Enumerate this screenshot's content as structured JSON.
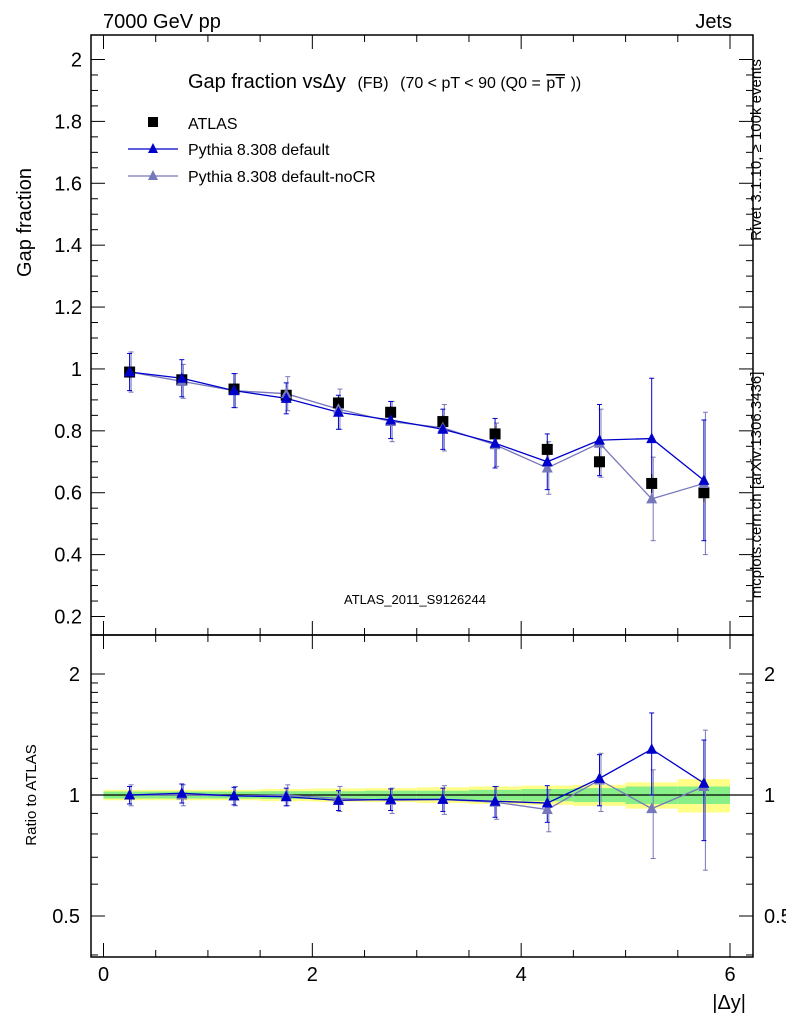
{
  "header": {
    "left": "7000 GeV pp",
    "right": "Jets"
  },
  "side_labels": {
    "rivet": "Rivet 3.1.10, ≥ 100k events",
    "mcplots": "mcplots.cern.ch [arXiv:1306.3436]"
  },
  "watermark": "ATLAS_2011_S9126244",
  "colors": {
    "atlas": "#000000",
    "default": "#0000cc",
    "nocr": "#7777bb",
    "band_yellow": "#ffff88",
    "band_green": "#88ee88",
    "ref_line": "#000000"
  },
  "chart_data": [
    {
      "type": "scatter",
      "title_parts": {
        "main": "Gap fraction vsΔy",
        "tag": "(FB)",
        "cond": "(70 < pT <  90 (Q0 =",
        "bar": "pT",
        "close": "))"
      },
      "ylabel": "Gap fraction",
      "xlim": [
        0,
        6.2
      ],
      "ylim": [
        0.15,
        2.08
      ],
      "yticks": [
        0.2,
        0.4,
        0.6,
        0.8,
        1,
        1.2,
        1.4,
        1.6,
        1.8,
        2
      ],
      "ytick_labels": [
        "0.2",
        "0.4",
        "0.6",
        "0.8",
        "1",
        "1.2",
        "1.4",
        "1.6",
        "1.8",
        "2"
      ],
      "legend_position": "top-left",
      "x": [
        0.25,
        0.75,
        1.25,
        1.75,
        2.25,
        2.75,
        3.25,
        3.75,
        4.25,
        4.75,
        5.25,
        5.75
      ],
      "series": [
        {
          "name": "ATLAS",
          "style": "square",
          "values": [
            0.99,
            0.965,
            0.935,
            0.915,
            0.89,
            0.86,
            0.83,
            0.79,
            0.74,
            0.7,
            0.63,
            0.6
          ],
          "err": [
            0.02,
            0.02,
            0.02,
            0.02,
            0.02,
            0.02,
            0.02,
            0.025,
            0.025,
            0.03,
            0.03,
            0.03
          ]
        },
        {
          "name": "Pythia 8.308 default",
          "style": "triangle-line",
          "values": [
            0.99,
            0.97,
            0.93,
            0.905,
            0.86,
            0.835,
            0.805,
            0.76,
            0.7,
            0.77,
            0.775,
            0.64
          ],
          "err": [
            0.06,
            0.06,
            0.055,
            0.05,
            0.055,
            0.06,
            0.065,
            0.08,
            0.09,
            0.115,
            0.195,
            0.195
          ]
        },
        {
          "name": "Pythia 8.308 default-noCR",
          "style": "triangle-line",
          "values": [
            0.99,
            0.96,
            0.93,
            0.92,
            0.87,
            0.83,
            0.81,
            0.755,
            0.68,
            0.76,
            0.58,
            0.63
          ],
          "err": [
            0.065,
            0.055,
            0.055,
            0.055,
            0.065,
            0.065,
            0.075,
            0.07,
            0.085,
            0.11,
            0.135,
            0.23
          ]
        }
      ]
    },
    {
      "type": "scatter",
      "ylabel": "Ratio to ATLAS",
      "xlabel": "|Δy|",
      "scale": "log",
      "xlim": [
        -0.1,
        6.2
      ],
      "ylim": [
        0.38,
        2.4
      ],
      "xticks": [
        0,
        2,
        4,
        6
      ],
      "xtick_labels": [
        "0",
        "2",
        "4",
        "6"
      ],
      "yticks": [
        0.5,
        1,
        2
      ],
      "ytick_labels": [
        "0.5",
        "1",
        "2"
      ],
      "x": [
        0.25,
        0.75,
        1.25,
        1.75,
        2.25,
        2.75,
        3.25,
        3.75,
        4.25,
        4.75,
        5.25,
        5.75
      ],
      "band_green": [
        0.02,
        0.02,
        0.02,
        0.022,
        0.022,
        0.025,
        0.025,
        0.03,
        0.035,
        0.04,
        0.05,
        0.05
      ],
      "band_yellow": [
        0.03,
        0.03,
        0.03,
        0.035,
        0.038,
        0.04,
        0.045,
        0.05,
        0.055,
        0.06,
        0.075,
        0.095
      ],
      "series": [
        {
          "name": "Pythia 8.308 default",
          "values": [
            1.0,
            1.01,
            0.995,
            0.99,
            0.97,
            0.975,
            0.975,
            0.965,
            0.955,
            1.1,
            1.3,
            1.07
          ],
          "err": [
            0.05,
            0.055,
            0.05,
            0.05,
            0.055,
            0.06,
            0.065,
            0.085,
            0.1,
            0.16,
            0.3,
            0.3
          ]
        },
        {
          "name": "Pythia 8.308 default-noCR",
          "values": [
            1.0,
            1.0,
            0.995,
            1.0,
            0.98,
            0.97,
            0.975,
            0.96,
            0.92,
            1.09,
            0.925,
            1.05
          ],
          "err": [
            0.06,
            0.06,
            0.055,
            0.06,
            0.07,
            0.07,
            0.08,
            0.09,
            0.11,
            0.18,
            0.23,
            0.4
          ]
        }
      ]
    }
  ]
}
